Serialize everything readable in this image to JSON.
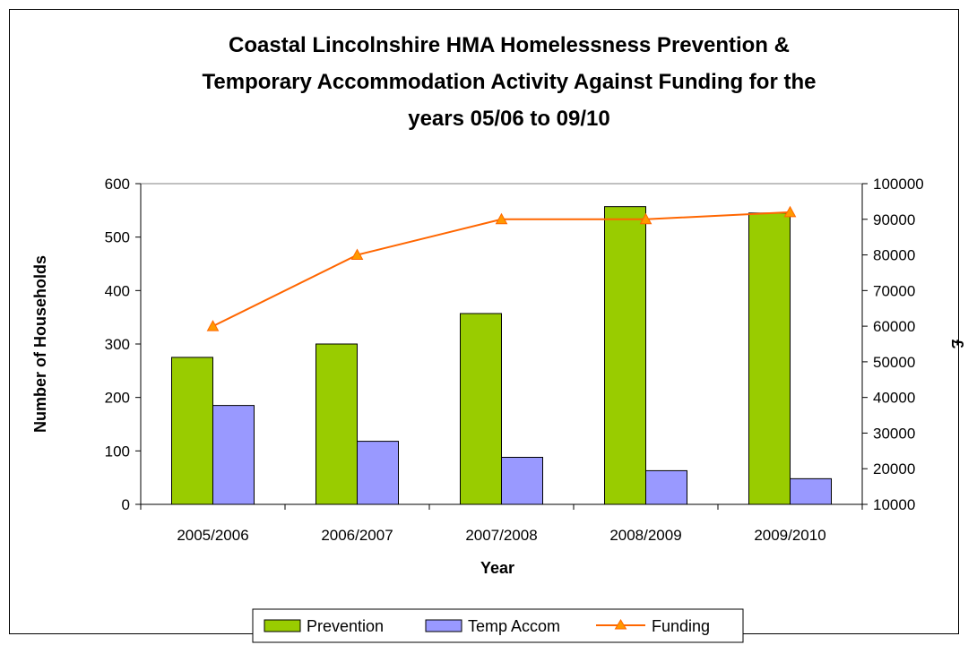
{
  "chart_data": {
    "type": "bar",
    "title_lines": [
      "Coastal Lincolnshire HMA Homelessness Prevention &",
      "Temporary Accommodation Activity Against Funding for the",
      "years 05/06 to 09/10"
    ],
    "xlabel": "Year",
    "ylabel": "Number of Households",
    "y2label": "£",
    "categories": [
      "2005/2006",
      "2006/2007",
      "2007/2008",
      "2008/2009",
      "2009/2010"
    ],
    "ylim": [
      0,
      600
    ],
    "yticks": [
      0,
      100,
      200,
      300,
      400,
      500,
      600
    ],
    "y2lim": [
      10000,
      100000
    ],
    "y2ticks": [
      10000,
      20000,
      30000,
      40000,
      50000,
      60000,
      70000,
      80000,
      90000,
      100000
    ],
    "series": [
      {
        "name": "Prevention",
        "kind": "bar",
        "axis": "left",
        "color": "#99cc00",
        "values": [
          275,
          300,
          357,
          557,
          545
        ]
      },
      {
        "name": "Temp Accom",
        "kind": "bar",
        "axis": "left",
        "color": "#9999ff",
        "values": [
          185,
          118,
          88,
          63,
          48
        ]
      },
      {
        "name": "Funding",
        "kind": "line",
        "axis": "right",
        "color": "#ff6600",
        "marker": "triangle",
        "values": [
          60000,
          80000,
          90000,
          90000,
          92000
        ]
      }
    ],
    "grid": false,
    "legend_position": "bottom"
  }
}
